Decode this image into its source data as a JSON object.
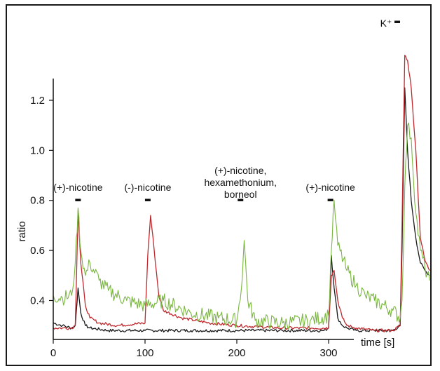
{
  "chart_data": {
    "type": "line",
    "xlabel": "time [s]",
    "ylabel": "ratio",
    "xlim": [
      0,
      400
    ],
    "ylim": [
      0.25,
      1.25
    ],
    "x_ticks": [
      "0",
      "100",
      "200",
      "300"
    ],
    "x_tick_values": [
      0,
      100,
      200,
      300
    ],
    "y_ticks": [
      "0.4",
      "0.6",
      "0.8",
      "1.0",
      "1.2"
    ],
    "y_tick_values": [
      0.4,
      0.6,
      0.8,
      1.0,
      1.2
    ],
    "annotations": [
      {
        "lines": [
          "(+)-nicotine"
        ],
        "x": 27
      },
      {
        "lines": [
          "(-)-nicotine"
        ],
        "x": 103
      },
      {
        "lines": [
          "(+)-nicotine,",
          "hexamethonium,",
          "borneol"
        ],
        "x": 204
      },
      {
        "lines": [
          "(+)-nicotine"
        ],
        "x": 302
      },
      {
        "lines": [
          "K⁺"
        ],
        "x": 382
      }
    ],
    "series": [
      {
        "color": "#1a1a1a",
        "x": [
          0,
          10,
          20,
          24,
          27,
          30,
          35,
          40,
          60,
          100,
          150,
          200,
          250,
          295,
          300,
          303,
          306,
          310,
          315,
          320,
          330,
          350,
          370,
          378,
          380,
          383,
          386,
          390,
          395,
          400,
          405,
          410
        ],
        "y": [
          0.31,
          0.3,
          0.29,
          0.3,
          0.45,
          0.35,
          0.3,
          0.29,
          0.28,
          0.28,
          0.28,
          0.28,
          0.28,
          0.28,
          0.29,
          0.58,
          0.45,
          0.33,
          0.3,
          0.29,
          0.28,
          0.28,
          0.28,
          0.3,
          0.6,
          1.25,
          1.0,
          0.8,
          0.65,
          0.55,
          0.52,
          0.5
        ]
      },
      {
        "color": "#c0282d",
        "x": [
          0,
          10,
          20,
          24,
          27,
          30,
          35,
          40,
          50,
          70,
          100,
          103,
          106,
          110,
          115,
          120,
          140,
          170,
          200,
          250,
          300,
          303,
          306,
          310,
          315,
          320,
          330,
          350,
          370,
          378,
          380,
          383,
          386,
          390,
          395,
          400,
          405,
          410
        ],
        "y": [
          0.29,
          0.29,
          0.29,
          0.3,
          0.76,
          0.55,
          0.38,
          0.33,
          0.31,
          0.3,
          0.31,
          0.58,
          0.74,
          0.6,
          0.42,
          0.36,
          0.33,
          0.31,
          0.3,
          0.29,
          0.29,
          0.5,
          0.52,
          0.4,
          0.33,
          0.3,
          0.29,
          0.28,
          0.28,
          0.3,
          0.7,
          1.38,
          1.36,
          1.25,
          1.0,
          0.65,
          0.56,
          0.52
        ]
      },
      {
        "color": "#7ab640",
        "x": [
          0,
          10,
          20,
          24,
          27,
          30,
          35,
          40,
          50,
          60,
          80,
          100,
          120,
          150,
          180,
          200,
          205,
          208,
          212,
          220,
          250,
          280,
          300,
          303,
          306,
          310,
          320,
          330,
          340,
          350,
          370,
          378,
          380,
          383,
          386,
          390,
          395,
          400,
          405,
          410
        ],
        "y": [
          0.42,
          0.41,
          0.42,
          0.55,
          0.77,
          0.6,
          0.5,
          0.55,
          0.48,
          0.44,
          0.4,
          0.38,
          0.4,
          0.35,
          0.33,
          0.32,
          0.45,
          0.64,
          0.4,
          0.32,
          0.31,
          0.32,
          0.34,
          0.6,
          0.8,
          0.62,
          0.52,
          0.46,
          0.42,
          0.4,
          0.36,
          0.33,
          0.4,
          0.85,
          1.1,
          1.05,
          0.75,
          0.6,
          0.53,
          0.48
        ]
      }
    ]
  }
}
